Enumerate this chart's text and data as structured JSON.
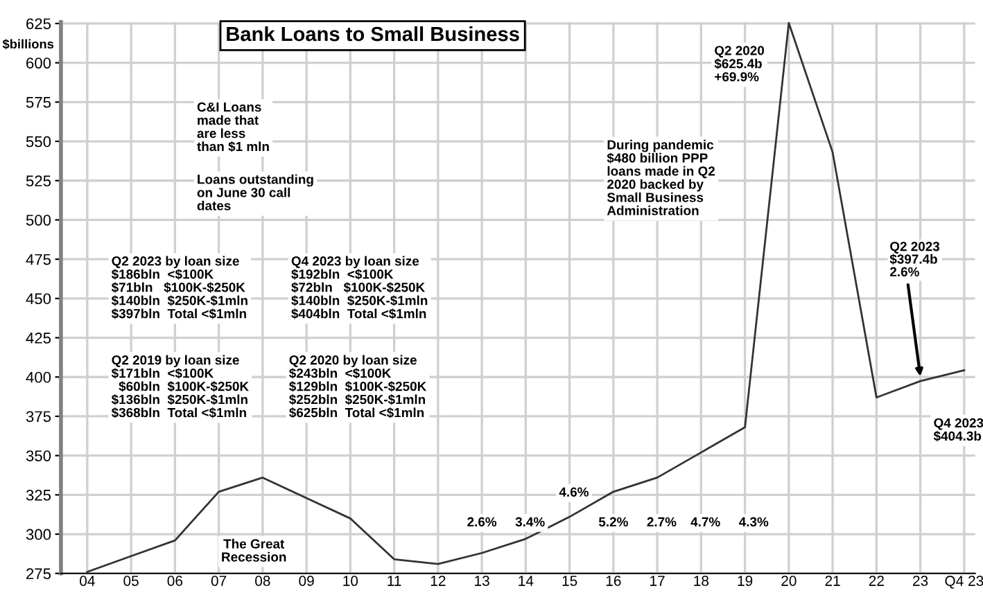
{
  "chart_data": {
    "type": "line",
    "title": "Bank Loans to Small Business",
    "ylabel": "$billions",
    "categories": [
      "04",
      "05",
      "06",
      "07",
      "08",
      "09",
      "10",
      "11",
      "12",
      "13",
      "14",
      "15",
      "16",
      "17",
      "18",
      "19",
      "20",
      "21",
      "22",
      "23",
      "Q4 23"
    ],
    "series": [
      {
        "color": "#333333",
        "values": [
          276,
          286,
          296,
          327,
          336,
          323,
          310,
          284,
          281,
          288,
          297,
          311,
          327,
          336,
          352,
          368,
          625.4,
          543,
          387,
          397.4,
          404.3
        ]
      }
    ],
    "ylim": [
      275,
      626
    ],
    "yticks": [
      275,
      300,
      325,
      350,
      375,
      400,
      425,
      450,
      475,
      500,
      525,
      550,
      575,
      600,
      625
    ],
    "grid": true,
    "legend": false,
    "marker": "none",
    "line_style": "solid",
    "annotations": [
      "C&I Loans\nmade that\nare less\nthan $1 mln",
      "Loans outstanding\non June 30 call\ndates",
      "Q2 2023 by loan size\n$186bln  <$100K\n$71bln   $100K-$250K\n$140bln  $250K-$1mln\n$397bln  Total <$1mln",
      "Q4 2023 by loan size\n$192bln  <$100K\n$72bln   $100K-$250K\n$140bln  $250K-$1mln\n$404bln  Total <$1mln",
      "Q2 2019 by loan size\n$171bln  <$100K\n  $60bln  $100K-$250K\n$136bln  $250K-$1mln\n$368bln  Total <$1mln",
      "Q2 2020 by loan size\n$243bln  <$100K\n$129bln  $100K-$250K\n$252bln  $250K-$1mln\n$625bln  Total <$1mln",
      "The Great\nRecession",
      "2.6%",
      "3.4%",
      "4.6%",
      "5.2%",
      "2.7%",
      "4.7%",
      "4.3%",
      "During pandemic\n$480 billion PPP\nloans made in Q2\n2020 backed by\nSmall Business\nAdministration",
      "Q2 2020\n$625.4b\n+69.9%",
      {
        "text": "Q2 2023\n$397.4b\n2.6%",
        "x": "23",
        "y": 397.4
      },
      "Q4 2023\n$404.3b"
    ]
  }
}
